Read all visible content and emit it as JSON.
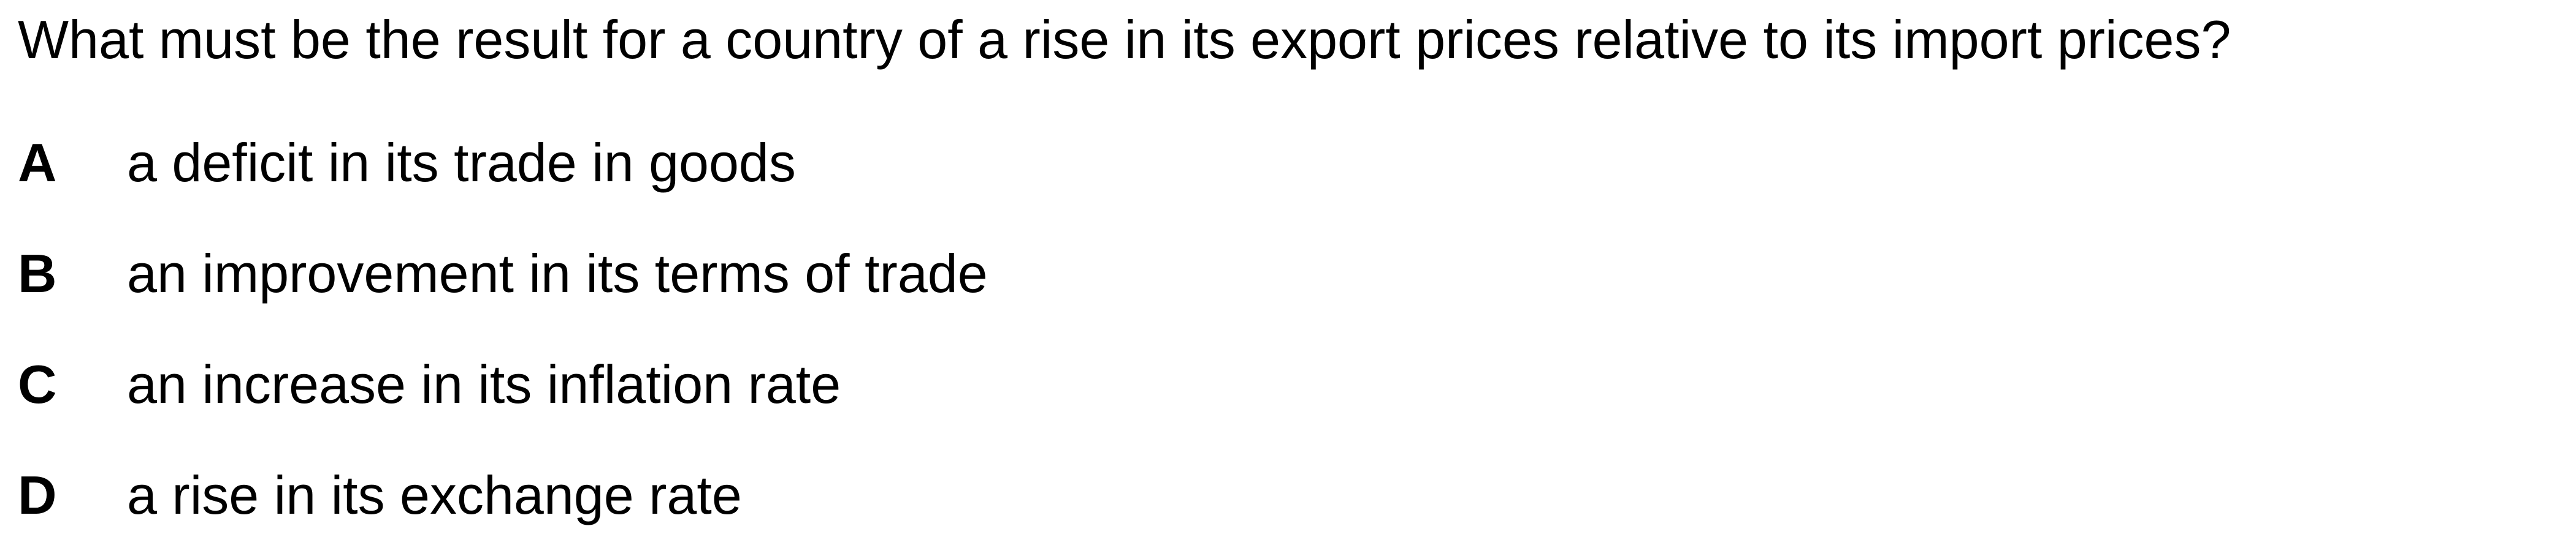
{
  "question": {
    "text": "What must be the result for a country of a rise in its export prices relative to its import prices?"
  },
  "options": [
    {
      "letter": "A",
      "text": "a deficit in its trade in goods"
    },
    {
      "letter": "B",
      "text": "an improvement in its terms of trade"
    },
    {
      "letter": "C",
      "text": "an increase in its inflation rate"
    },
    {
      "letter": "D",
      "text": "a rise in its exchange rate"
    }
  ]
}
